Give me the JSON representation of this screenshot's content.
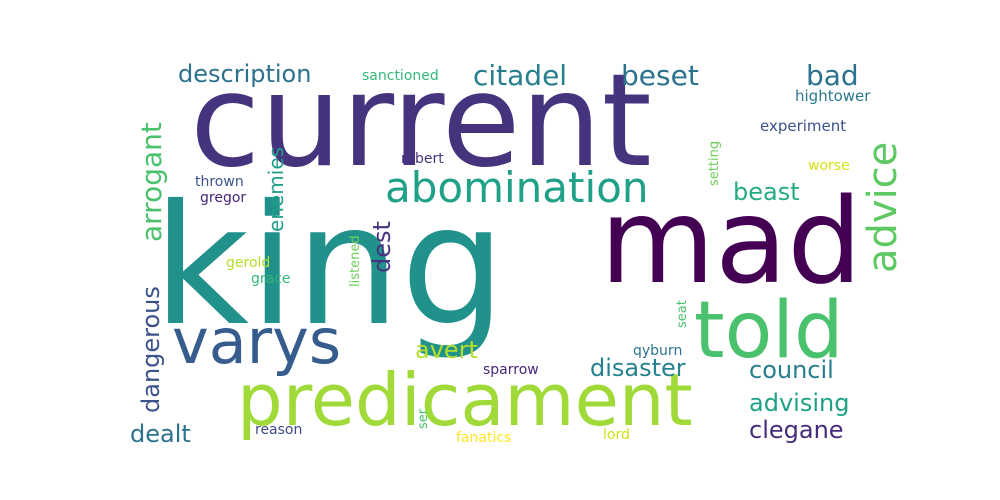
{
  "words": [
    {
      "text": "king",
      "color": "#21918c"
    },
    {
      "text": "current",
      "color": "#46337e"
    },
    {
      "text": "mad",
      "color": "#440154"
    },
    {
      "text": "predicament",
      "color": "#a0da39"
    },
    {
      "text": "told",
      "color": "#4ac16d"
    },
    {
      "text": "varys",
      "color": "#365c8d"
    },
    {
      "text": "abomination",
      "color": "#1fa187"
    },
    {
      "text": "advice",
      "color": "#5ec962"
    },
    {
      "text": "citadel",
      "color": "#277f8e"
    },
    {
      "text": "beset",
      "color": "#2c728e"
    },
    {
      "text": "description",
      "color": "#2c728e"
    },
    {
      "text": "bad",
      "color": "#2c728e"
    },
    {
      "text": "arrogant",
      "color": "#4ac16d"
    },
    {
      "text": "dangerous",
      "color": "#3b528b"
    },
    {
      "text": "enemies",
      "color": "#1f9e89"
    },
    {
      "text": "beast",
      "color": "#25ab82"
    },
    {
      "text": "dest",
      "color": "#46337e"
    },
    {
      "text": "avert",
      "color": "#b5de2b"
    },
    {
      "text": "disaster",
      "color": "#26828e"
    },
    {
      "text": "council",
      "color": "#277f8e"
    },
    {
      "text": "advising",
      "color": "#1fa187"
    },
    {
      "text": "dealt",
      "color": "#2c728e"
    },
    {
      "text": "clegane",
      "color": "#472c7a"
    },
    {
      "text": "hightower",
      "color": "#2a788e"
    },
    {
      "text": "experiment",
      "color": "#3b528b"
    },
    {
      "text": "sanctioned",
      "color": "#35b779"
    },
    {
      "text": "robert",
      "color": "#46337e"
    },
    {
      "text": "thrown",
      "color": "#3b528b"
    },
    {
      "text": "gregor",
      "color": "#482475"
    },
    {
      "text": "setting",
      "color": "#6ece58"
    },
    {
      "text": "worse",
      "color": "#d8e219"
    },
    {
      "text": "listened",
      "color": "#6ece58"
    },
    {
      "text": "gerold",
      "color": "#b5de2b"
    },
    {
      "text": "grace",
      "color": "#35b779"
    },
    {
      "text": "seat",
      "color": "#4ac16d"
    },
    {
      "text": "qyburn",
      "color": "#2c728e"
    },
    {
      "text": "sparrow",
      "color": "#482878"
    },
    {
      "text": "ser",
      "color": "#4ac16d"
    },
    {
      "text": "reason",
      "color": "#3e4a89"
    },
    {
      "text": "fanatics",
      "color": "#fde725"
    },
    {
      "text": "lord",
      "color": "#d0e11c"
    }
  ]
}
